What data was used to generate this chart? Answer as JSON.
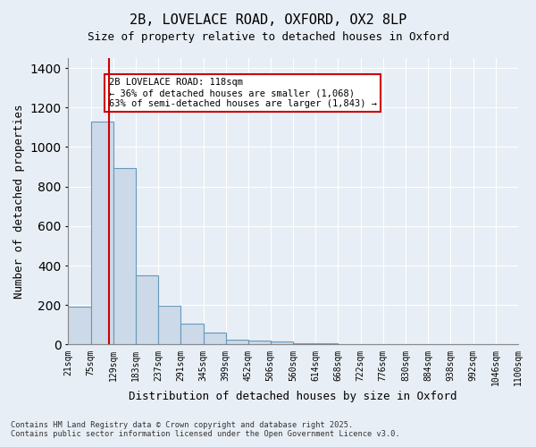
{
  "title_line1": "2B, LOVELACE ROAD, OXFORD, OX2 8LP",
  "title_line2": "Size of property relative to detached houses in Oxford",
  "xlabel": "Distribution of detached houses by size in Oxford",
  "ylabel": "Number of detached properties",
  "bar_color": "#ccd9e8",
  "bar_edge_color": "#6699bb",
  "background_color": "#e8eef5",
  "grid_color": "#ffffff",
  "property_line_color": "#cc0000",
  "property_line_x": 118,
  "annotation_text": "2B LOVELACE ROAD: 118sqm\n← 36% of detached houses are smaller (1,068)\n63% of semi-detached houses are larger (1,843) →",
  "annotation_box_color": "#cc0000",
  "bins": [
    21,
    75,
    129,
    183,
    237,
    291,
    345,
    399,
    452,
    506,
    560,
    614,
    668,
    722,
    776,
    830,
    884,
    938,
    992,
    1046,
    1100
  ],
  "bin_labels": [
    "21sqm",
    "75sqm",
    "129sqm",
    "183sqm",
    "237sqm",
    "291sqm",
    "345sqm",
    "399sqm",
    "452sqm",
    "506sqm",
    "560sqm",
    "614sqm",
    "668sqm",
    "722sqm",
    "776sqm",
    "830sqm",
    "884sqm",
    "938sqm",
    "992sqm",
    "1046sqm",
    "1100sqm"
  ],
  "counts": [
    190,
    1130,
    893,
    350,
    195,
    105,
    62,
    25,
    22,
    15,
    7,
    8,
    0,
    0,
    0,
    0,
    0,
    0,
    0,
    0
  ],
  "ylim": [
    0,
    1450
  ],
  "yticks": [
    0,
    200,
    400,
    600,
    800,
    1000,
    1200,
    1400
  ],
  "footer_line1": "Contains HM Land Registry data © Crown copyright and database right 2025.",
  "footer_line2": "Contains public sector information licensed under the Open Government Licence v3.0."
}
